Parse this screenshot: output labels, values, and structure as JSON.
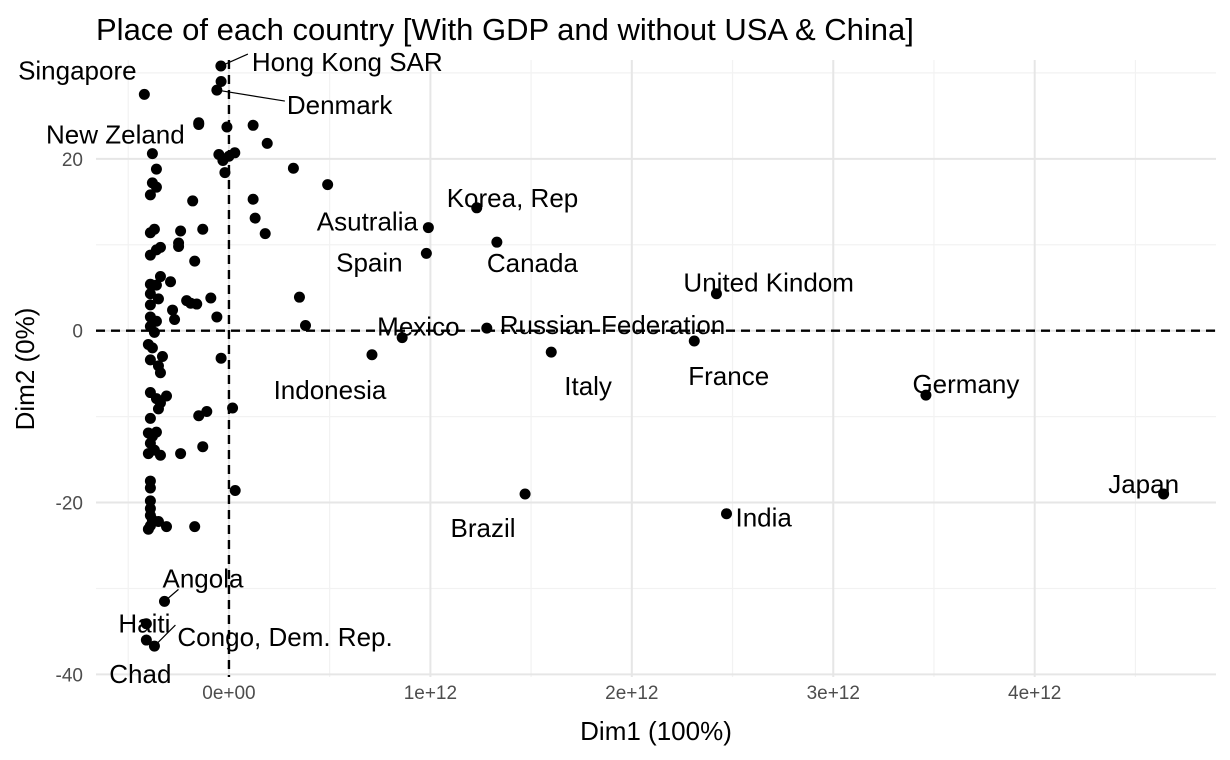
{
  "chart_data": {
    "type": "scatter",
    "title": "Place of each country [With GDP and without USA & China]",
    "xlabel": "Dim1 (100%)",
    "ylabel": "Dim2 (0%)",
    "xlim": [
      -660000000000.0,
      4900000000000.0
    ],
    "ylim": [
      -40.3,
      31.5
    ],
    "x_ticks": [
      0,
      1000000000000.0,
      2000000000000.0,
      3000000000000.0,
      4000000000000.0
    ],
    "x_tick_labels": [
      "0e+00",
      "1e+12",
      "2e+12",
      "3e+12",
      "4e+12"
    ],
    "y_ticks": [
      -40,
      -20,
      0,
      20
    ],
    "y_tick_labels": [
      "-40",
      "-20",
      "0",
      "20"
    ],
    "grid": true,
    "reference_lines": {
      "x": 0,
      "y": 0,
      "style": "dashed"
    },
    "labeled_points": [
      {
        "label": "Singapore",
        "x": -420000000000.0,
        "y": 27.5
      },
      {
        "label": "Hong Kong SAR",
        "x": -40000000000.0,
        "y": 30.8
      },
      {
        "label": "New Zeland",
        "x": -150000000000.0,
        "y": 24.2
      },
      {
        "label": "Denmark",
        "x": -60000000000.0,
        "y": 28.0
      },
      {
        "label": "Korea, Rep",
        "x": 1230000000000.0,
        "y": 14.3
      },
      {
        "label": "Asutralia",
        "x": 990000000000.0,
        "y": 12.0
      },
      {
        "label": "Canada",
        "x": 1330000000000.0,
        "y": 10.3
      },
      {
        "label": "Spain",
        "x": 980000000000.0,
        "y": 9.0
      },
      {
        "label": "United Kindom",
        "x": 2420000000000.0,
        "y": 4.3
      },
      {
        "label": "Mexico",
        "x": 860000000000.0,
        "y": -0.8
      },
      {
        "label": "Russian Federation",
        "x": 1280000000000.0,
        "y": 0.3
      },
      {
        "label": "Indonesia",
        "x": 710000000000.0,
        "y": -2.8
      },
      {
        "label": "Italy",
        "x": 1600000000000.0,
        "y": -2.5
      },
      {
        "label": "France",
        "x": 2310000000000.0,
        "y": -1.2
      },
      {
        "label": "Germany",
        "x": 3460000000000.0,
        "y": -7.5
      },
      {
        "label": "Japan",
        "x": 4640000000000.0,
        "y": -19.0
      },
      {
        "label": "Brazil",
        "x": 1470000000000.0,
        "y": -19.0
      },
      {
        "label": "India",
        "x": 2470000000000.0,
        "y": -21.3
      },
      {
        "label": "Angola",
        "x": -320000000000.0,
        "y": -31.5
      },
      {
        "label": "Haiti",
        "x": -410000000000.0,
        "y": -34.1
      },
      {
        "label": "Congo, Dem. Rep.",
        "x": -370000000000.0,
        "y": -36.7
      },
      {
        "label": "Chad",
        "x": -410000000000.0,
        "y": -36.0
      }
    ],
    "unlabeled_points": [
      [
        -39000000000.0,
        29.0
      ],
      [
        -150000000000.0,
        24.0
      ],
      [
        -10000000000.0,
        23.7
      ],
      [
        120000000000.0,
        23.9
      ],
      [
        190000000000.0,
        21.8
      ],
      [
        320000000000.0,
        18.9
      ],
      [
        490000000000.0,
        17.0
      ],
      [
        -50000000000.0,
        20.5
      ],
      [
        -30000000000.0,
        19.8
      ],
      [
        0.0,
        20.3
      ],
      [
        29000000000.0,
        20.7
      ],
      [
        -20000000000.0,
        18.4
      ],
      [
        120000000000.0,
        15.3
      ],
      [
        130000000000.0,
        13.1
      ],
      [
        180000000000.0,
        11.3
      ],
      [
        350000000000.0,
        3.9
      ],
      [
        380000000000.0,
        0.6
      ],
      [
        18000000000.0,
        -9.0
      ],
      [
        31000000000.0,
        -18.6
      ],
      [
        -39000000000.0,
        -3.2
      ],
      [
        -170000000000.0,
        -22.8
      ],
      [
        -130000000000.0,
        -13.5
      ],
      [
        -110000000000.0,
        -9.4
      ],
      [
        -150000000000.0,
        -9.9
      ],
      [
        -240000000000.0,
        -14.3
      ],
      [
        -130000000000.0,
        11.8
      ],
      [
        -170000000000.0,
        8.1
      ],
      [
        -180000000000.0,
        15.1
      ],
      [
        -240000000000.0,
        11.6
      ],
      [
        -250000000000.0,
        10.2
      ],
      [
        -250000000000.0,
        9.8
      ],
      [
        -210000000000.0,
        3.5
      ],
      [
        -190000000000.0,
        3.2
      ],
      [
        -160000000000.0,
        3.1
      ],
      [
        -90000000000.0,
        3.8
      ],
      [
        -60000000000.0,
        1.6
      ],
      [
        -280000000000.0,
        2.4
      ],
      [
        -270000000000.0,
        1.3
      ],
      [
        -290000000000.0,
        5.7
      ],
      [
        -380000000000.0,
        20.6
      ],
      [
        -360000000000.0,
        18.8
      ],
      [
        -380000000000.0,
        17.2
      ],
      [
        -360000000000.0,
        16.7
      ],
      [
        -390000000000.0,
        15.8
      ],
      [
        -390000000000.0,
        11.4
      ],
      [
        -370000000000.0,
        11.8
      ],
      [
        -390000000000.0,
        8.8
      ],
      [
        -360000000000.0,
        9.4
      ],
      [
        -340000000000.0,
        9.7
      ],
      [
        -340000000000.0,
        6.3
      ],
      [
        -390000000000.0,
        5.4
      ],
      [
        -360000000000.0,
        5.3
      ],
      [
        -390000000000.0,
        4.3
      ],
      [
        -350000000000.0,
        3.7
      ],
      [
        -390000000000.0,
        3.0
      ],
      [
        -390000000000.0,
        1.6
      ],
      [
        -360000000000.0,
        1.1
      ],
      [
        -390000000000.0,
        0.5
      ],
      [
        -370000000000.0,
        -0.2
      ],
      [
        -400000000000.0,
        -1.6
      ],
      [
        -380000000000.0,
        -2.0
      ],
      [
        -390000000000.0,
        -3.4
      ],
      [
        -350000000000.0,
        -4.1
      ],
      [
        -340000000000.0,
        -4.9
      ],
      [
        -330000000000.0,
        -3.0
      ],
      [
        -390000000000.0,
        -7.2
      ],
      [
        -360000000000.0,
        -7.9
      ],
      [
        -340000000000.0,
        -8.4
      ],
      [
        -310000000000.0,
        -7.6
      ],
      [
        -350000000000.0,
        -9.1
      ],
      [
        -390000000000.0,
        -10.2
      ],
      [
        -400000000000.0,
        -11.9
      ],
      [
        -380000000000.0,
        -12.3
      ],
      [
        -360000000000.0,
        -11.8
      ],
      [
        -390000000000.0,
        -13.1
      ],
      [
        -370000000000.0,
        -13.9
      ],
      [
        -340000000000.0,
        -14.5
      ],
      [
        -400000000000.0,
        -14.3
      ],
      [
        -390000000000.0,
        -17.5
      ],
      [
        -390000000000.0,
        -18.3
      ],
      [
        -390000000000.0,
        -19.8
      ],
      [
        -390000000000.0,
        -20.7
      ],
      [
        -390000000000.0,
        -21.5
      ],
      [
        -380000000000.0,
        -22.0
      ],
      [
        -390000000000.0,
        -22.7
      ],
      [
        -400000000000.0,
        -23.1
      ],
      [
        -310000000000.0,
        -22.8
      ],
      [
        -350000000000.0,
        -22.2
      ]
    ]
  }
}
